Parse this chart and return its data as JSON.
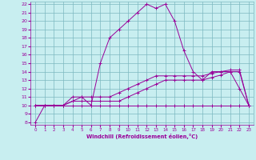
{
  "line1_x": [
    0,
    1,
    2,
    3,
    4,
    5,
    6,
    7,
    8,
    9,
    10,
    11,
    12,
    13,
    14,
    15,
    16,
    17,
    18,
    19,
    20,
    21,
    22,
    23
  ],
  "line1_y": [
    8,
    10,
    10,
    10,
    11,
    11,
    10,
    15,
    18,
    19,
    20,
    21,
    22,
    21.5,
    22,
    20,
    16.5,
    14,
    13,
    14,
    14,
    14,
    12,
    10
  ],
  "line2_x": [
    0,
    1,
    2,
    3,
    4,
    5,
    6,
    7,
    8,
    9,
    10,
    11,
    12,
    13,
    14,
    15,
    16,
    17,
    18,
    19,
    20,
    21,
    22,
    23
  ],
  "line2_y": [
    10,
    10,
    10,
    10,
    10,
    10,
    10,
    10,
    10,
    10,
    10,
    10,
    10,
    10,
    10,
    10,
    10,
    10,
    10,
    10,
    10,
    10,
    10,
    10
  ],
  "line3_x": [
    0,
    1,
    2,
    3,
    4,
    5,
    6,
    7,
    8,
    9,
    10,
    11,
    12,
    13,
    14,
    15,
    16,
    17,
    18,
    19,
    20,
    21,
    22,
    23
  ],
  "line3_y": [
    10,
    10,
    10,
    10,
    10.5,
    11,
    11,
    11,
    11,
    11.5,
    12,
    12.5,
    13,
    13.5,
    13.5,
    13.5,
    13.5,
    13.5,
    13.5,
    13.8,
    14,
    14.2,
    14.2,
    10
  ],
  "line4_x": [
    0,
    1,
    2,
    3,
    4,
    5,
    6,
    7,
    8,
    9,
    10,
    11,
    12,
    13,
    14,
    15,
    16,
    17,
    18,
    19,
    20,
    21,
    22,
    23
  ],
  "line4_y": [
    10,
    10,
    10,
    10,
    10.5,
    10.5,
    10.5,
    10.5,
    10.5,
    10.5,
    11,
    11.5,
    12,
    12.5,
    13,
    13,
    13,
    13,
    13,
    13.3,
    13.6,
    14,
    14,
    10
  ],
  "xlabel": "Windchill (Refroidissement éolien,°C)",
  "line_color": "#990099",
  "bg_color": "#c8eef0",
  "grid_color": "#7cb8c0",
  "xmin": 0,
  "xmax": 23,
  "ymin": 8,
  "ymax": 22
}
